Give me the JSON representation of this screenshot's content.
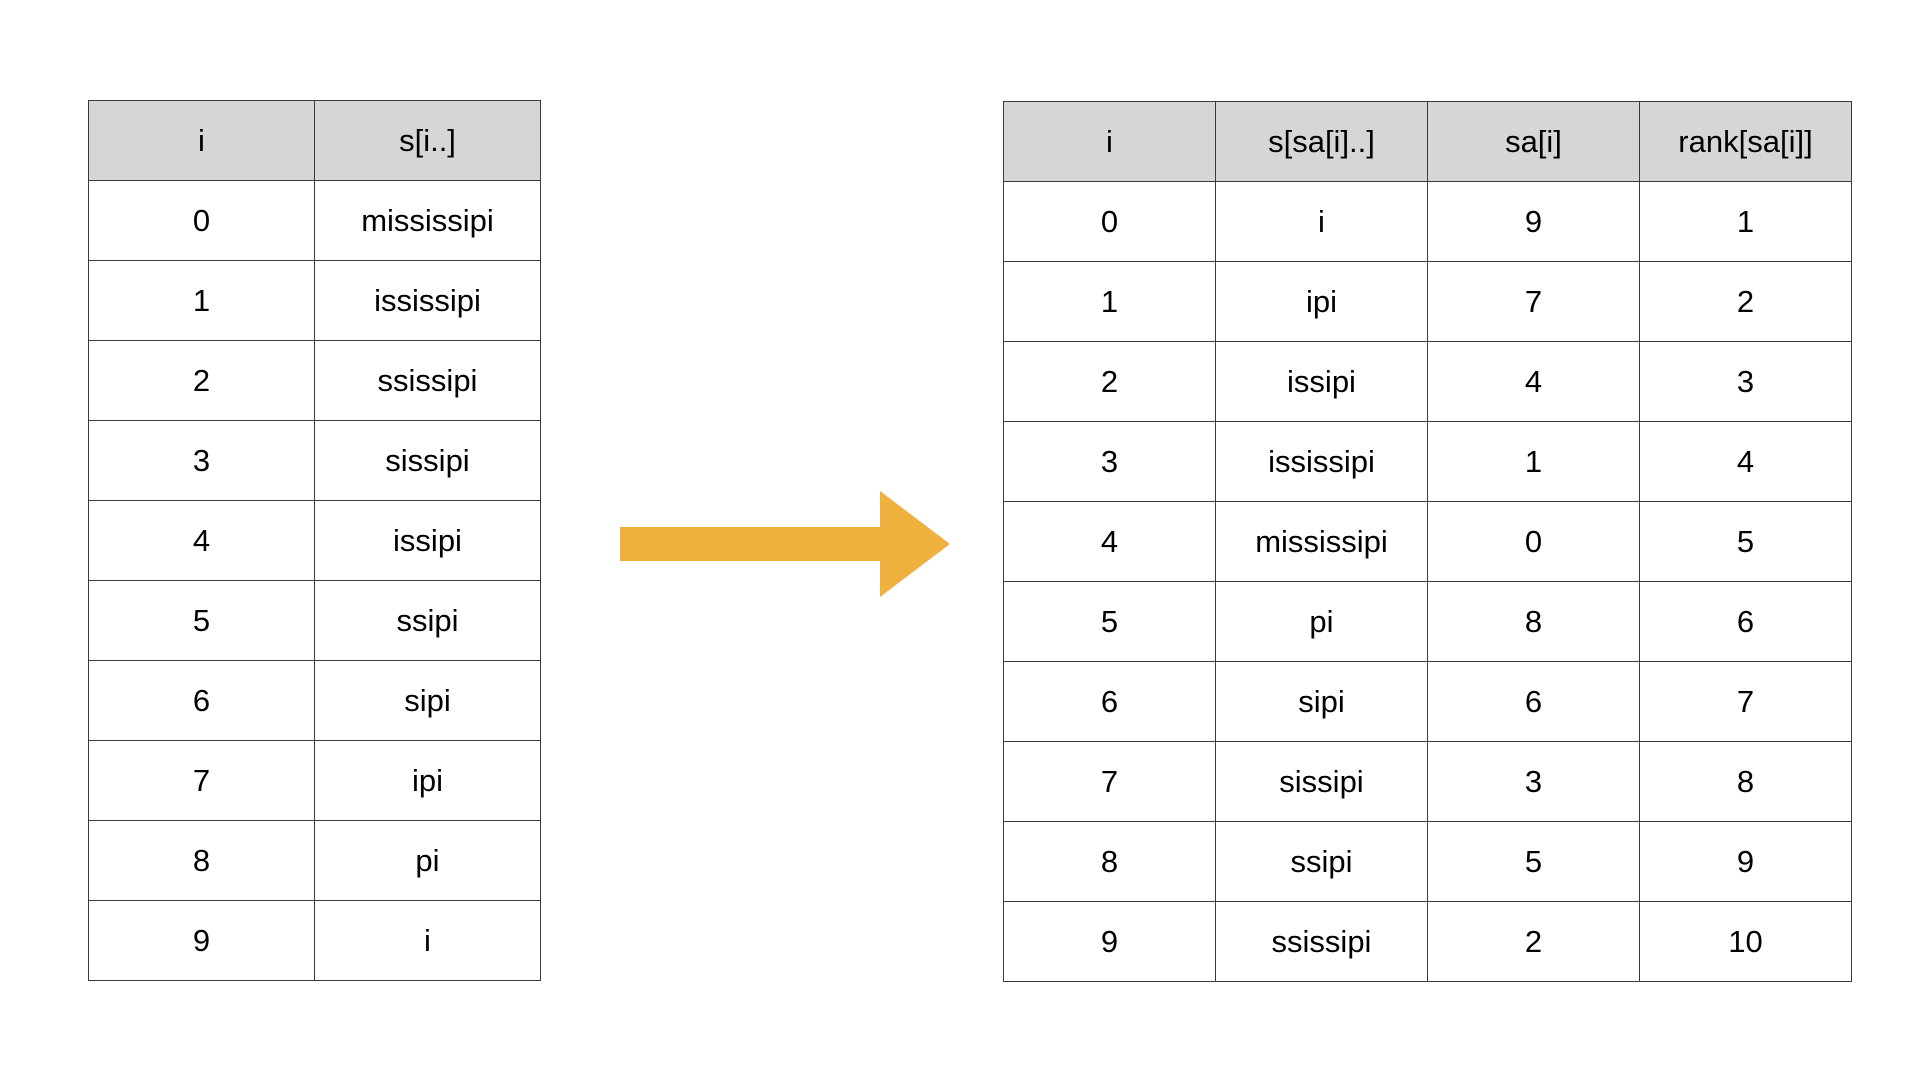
{
  "left_table": {
    "headers": [
      "i",
      "s[i..]"
    ],
    "rows": [
      [
        "0",
        "mississipi"
      ],
      [
        "1",
        "ississipi"
      ],
      [
        "2",
        "ssissipi"
      ],
      [
        "3",
        "sissipi"
      ],
      [
        "4",
        "issipi"
      ],
      [
        "5",
        "ssipi"
      ],
      [
        "6",
        "sipi"
      ],
      [
        "7",
        "ipi"
      ],
      [
        "8",
        "pi"
      ],
      [
        "9",
        "i"
      ]
    ]
  },
  "arrow": {
    "color": "#F0B03E",
    "icon": "right-arrow-icon"
  },
  "right_table": {
    "headers": [
      "i",
      "s[sa[i]..]",
      "sa[i]",
      "rank[sa[i]]"
    ],
    "rows": [
      [
        "0",
        "i",
        "9",
        "1"
      ],
      [
        "1",
        "ipi",
        "7",
        "2"
      ],
      [
        "2",
        "issipi",
        "4",
        "3"
      ],
      [
        "3",
        "ississipi",
        "1",
        "4"
      ],
      [
        "4",
        "mississipi",
        "0",
        "5"
      ],
      [
        "5",
        "pi",
        "8",
        "6"
      ],
      [
        "6",
        "sipi",
        "6",
        "7"
      ],
      [
        "7",
        "sissipi",
        "3",
        "8"
      ],
      [
        "8",
        "ssipi",
        "5",
        "9"
      ],
      [
        "9",
        "ssissipi",
        "2",
        "10"
      ]
    ]
  },
  "colors": {
    "header_background": "#D6D6D6",
    "border": "#3A3A3A",
    "text": "#000000"
  }
}
